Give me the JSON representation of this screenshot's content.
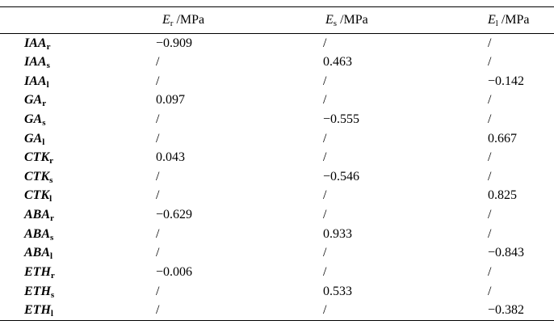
{
  "table": {
    "unit_note": "/MPa",
    "columns": [
      {
        "symbol": "",
        "sub": "",
        "unit": ""
      },
      {
        "symbol": "E",
        "sub": "r",
        "unit": " /MPa"
      },
      {
        "symbol": "E",
        "sub": "s",
        "unit": " /MPa"
      },
      {
        "symbol": "E",
        "sub": "l",
        "unit": " /MPa"
      }
    ],
    "rows": [
      {
        "name": "IAA",
        "sub": "r",
        "er": "−0.909",
        "es": "/",
        "el": "/"
      },
      {
        "name": "IAA",
        "sub": "s",
        "er": "/",
        "es": "0.463",
        "el": "/"
      },
      {
        "name": "IAA",
        "sub": "l",
        "er": "/",
        "es": "/",
        "el": "−0.142"
      },
      {
        "name": "GA",
        "sub": "r",
        "er": "0.097",
        "es": "/",
        "el": "/"
      },
      {
        "name": "GA",
        "sub": "s",
        "er": "/",
        "es": "−0.555",
        "el": "/"
      },
      {
        "name": "GA",
        "sub": "l",
        "er": "/",
        "es": "/",
        "el": "0.667"
      },
      {
        "name": "CTK",
        "sub": "r",
        "er": "0.043",
        "es": "/",
        "el": "/"
      },
      {
        "name": "CTK",
        "sub": "s",
        "er": "/",
        "es": "−0.546",
        "el": "/"
      },
      {
        "name": "CTK",
        "sub": "l",
        "er": "/",
        "es": "/",
        "el": "0.825"
      },
      {
        "name": "ABA",
        "sub": "r",
        "er": "−0.629",
        "es": "/",
        "el": "/"
      },
      {
        "name": "ABA",
        "sub": "s",
        "er": "/",
        "es": "0.933",
        "el": "/"
      },
      {
        "name": "ABA",
        "sub": "l",
        "er": "/",
        "es": "/",
        "el": "−0.843"
      },
      {
        "name": "ETH",
        "sub": "r",
        "er": "−0.006",
        "es": "/",
        "el": "/"
      },
      {
        "name": "ETH",
        "sub": "s",
        "er": "/",
        "es": "0.533",
        "el": "/"
      },
      {
        "name": "ETH",
        "sub": "l",
        "er": "/",
        "es": "/",
        "el": "−0.382"
      }
    ]
  }
}
